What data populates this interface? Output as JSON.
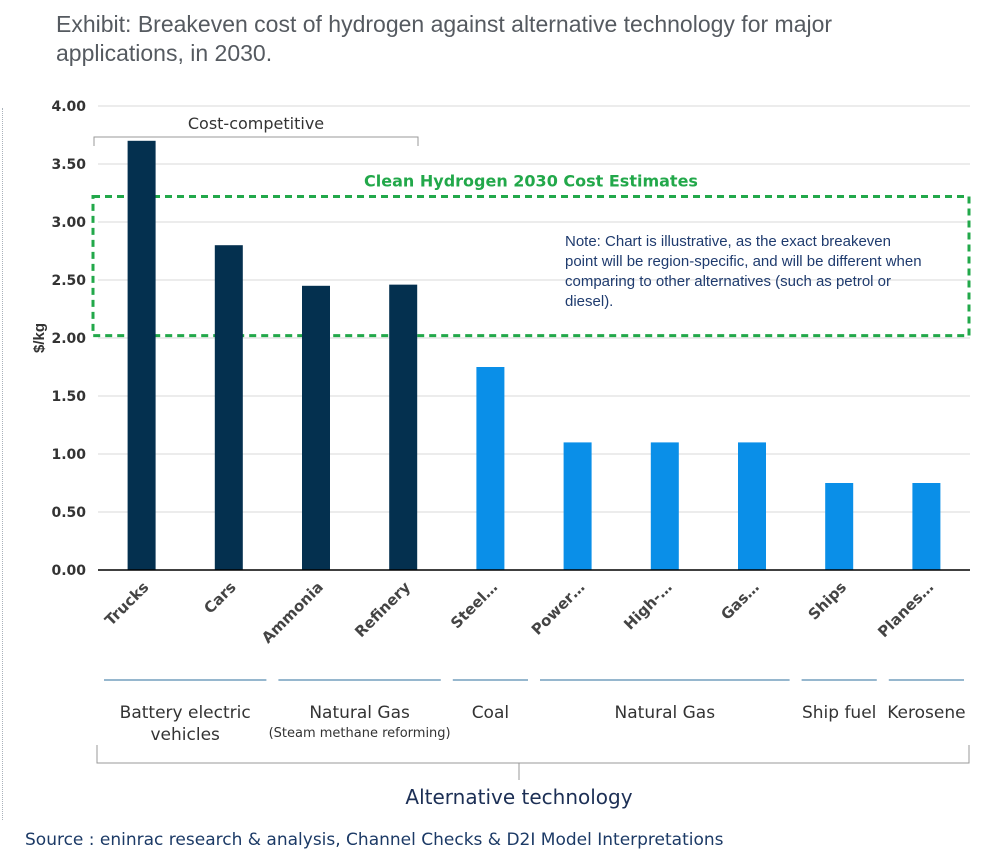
{
  "title": "Exhibit: Breakeven cost of hydrogen against alternative technology for major applications, in 2030.",
  "source": "Source : eninrac research & analysis, Channel Checks & D2I Model Interpretations",
  "colors": {
    "dark_bar": "#04304f",
    "light_bar": "#0a8fe8",
    "estimate_box": "#22a84a",
    "grid": "#d9d9d9"
  },
  "annotations": {
    "cost_competitive": "Cost-competitive",
    "estimate_box_label": "Clean Hydrogen 2030 Cost Estimates",
    "note": "Note: Chart is illustrative, as the exact breakeven point will be region-specific, and will be different when comparing to other alternatives (such as petrol or diesel).",
    "axis_group_title": "Alternative technology"
  },
  "groups": [
    {
      "label": "Battery electric vehicles",
      "sublabel": ""
    },
    {
      "label": "Natural Gas",
      "sublabel": "(Steam methane reforming)"
    },
    {
      "label": "Coal",
      "sublabel": ""
    },
    {
      "label": "Natural Gas",
      "sublabel": ""
    },
    {
      "label": "Ship fuel",
      "sublabel": ""
    },
    {
      "label": "Kerosene",
      "sublabel": ""
    }
  ],
  "chart_data": {
    "type": "bar",
    "ylabel": "$/kg",
    "xlabel": "",
    "ylim": [
      0,
      4
    ],
    "yticks": [
      "0.00",
      "0.50",
      "1.00",
      "1.50",
      "2.00",
      "2.50",
      "3.00",
      "3.50",
      "4.00"
    ],
    "grid": true,
    "categories": [
      "Trucks",
      "Cars",
      "Ammonia",
      "Refinery",
      "Steel…",
      "Power…",
      "High-…",
      "Gas…",
      "Ships",
      "Planes…"
    ],
    "values": [
      3.7,
      2.8,
      2.45,
      2.46,
      1.75,
      1.1,
      1.1,
      1.1,
      0.75,
      0.75
    ],
    "cost_competitive": [
      true,
      true,
      true,
      true,
      false,
      false,
      false,
      false,
      false,
      false
    ],
    "estimate_range": [
      2.02,
      3.22
    ]
  }
}
